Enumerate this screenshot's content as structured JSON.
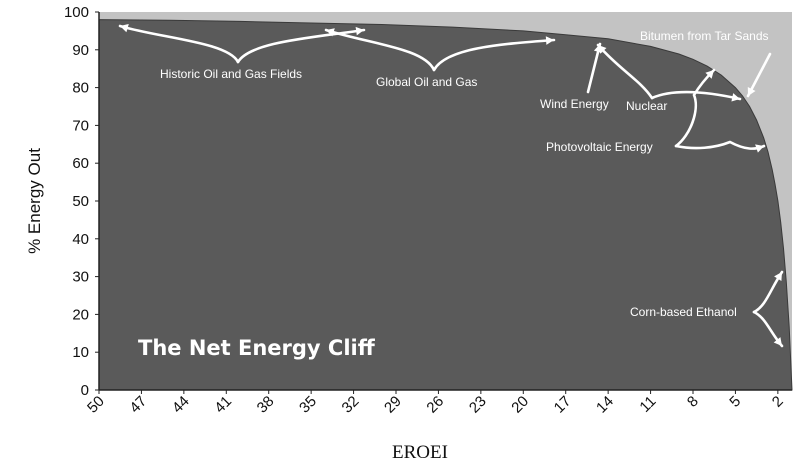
{
  "chart_data": {
    "type": "area",
    "title": "The Net Energy Cliff",
    "xlabel": "EROEI",
    "ylabel": "% Energy Out",
    "x_reversed": true,
    "x_ticks": [
      "50",
      "47",
      "44",
      "41",
      "38",
      "35",
      "32",
      "29",
      "26",
      "23",
      "20",
      "17",
      "14",
      "11",
      "8",
      "5",
      "2"
    ],
    "y_ticks": [
      "0",
      "10",
      "20",
      "30",
      "40",
      "50",
      "60",
      "70",
      "80",
      "90",
      "100"
    ],
    "xlim": [
      50,
      1
    ],
    "ylim": [
      0,
      100
    ],
    "colors": {
      "area": "#5a5a5a",
      "background": "#c3c3c3",
      "text": "#ffffff"
    },
    "series": [
      {
        "x": [
          50,
          45,
          40,
          35,
          30,
          25,
          20,
          17,
          14,
          11,
          9,
          8,
          7,
          6,
          5,
          4.5,
          4,
          3.5,
          3,
          2.7,
          2.4,
          2.2,
          2,
          1.8,
          1.6,
          1.4,
          1.2,
          1
        ],
        "y": [
          98,
          97.8,
          97.5,
          97.1,
          96.7,
          96,
          95,
          94,
          92.9,
          90.9,
          88.9,
          87.5,
          85.7,
          83.3,
          80,
          77.8,
          75,
          71.4,
          66.7,
          63,
          58.3,
          54.5,
          50,
          44.4,
          37.5,
          28.6,
          16.7,
          0
        ]
      }
    ],
    "annotations": [
      {
        "label": "Historic Oil and Gas Fields"
      },
      {
        "label": "Global Oil and Gas"
      },
      {
        "label": "Bitumen from Tar Sands"
      },
      {
        "label": "Wind Energy"
      },
      {
        "label": "Nuclear"
      },
      {
        "label": "Photovoltaic Energy"
      },
      {
        "label": "Corn-based Ethanol"
      }
    ]
  }
}
